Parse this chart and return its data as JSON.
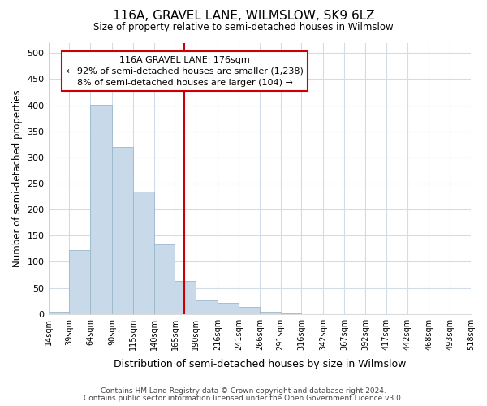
{
  "title": "116A, GRAVEL LANE, WILMSLOW, SK9 6LZ",
  "subtitle": "Size of property relative to semi-detached houses in Wilmslow",
  "xlabel": "Distribution of semi-detached houses by size in Wilmslow",
  "ylabel": "Number of semi-detached properties",
  "bar_color": "#c8daea",
  "bar_edge_color": "#9ab8cc",
  "marker_color": "#cc0000",
  "marker_value": 176,
  "annotation_title": "116A GRAVEL LANE: 176sqm",
  "annotation_line1": "← 92% of semi-detached houses are smaller (1,238)",
  "annotation_line2": "8% of semi-detached houses are larger (104) →",
  "footer_line1": "Contains HM Land Registry data © Crown copyright and database right 2024.",
  "footer_line2": "Contains public sector information licensed under the Open Government Licence v3.0.",
  "bin_edges": [
    14,
    39,
    64,
    90,
    115,
    140,
    165,
    190,
    216,
    241,
    266,
    291,
    316,
    342,
    367,
    392,
    417,
    442,
    468,
    493,
    518
  ],
  "bar_heights": [
    5,
    123,
    401,
    320,
    235,
    133,
    63,
    26,
    21,
    13,
    5,
    1,
    0,
    0,
    0,
    0,
    0,
    0,
    0,
    0
  ],
  "ylim": [
    0,
    520
  ],
  "yticks": [
    0,
    50,
    100,
    150,
    200,
    250,
    300,
    350,
    400,
    450,
    500
  ],
  "background_color": "#ffffff",
  "plot_background": "#ffffff",
  "grid_color": "#d0dce8"
}
